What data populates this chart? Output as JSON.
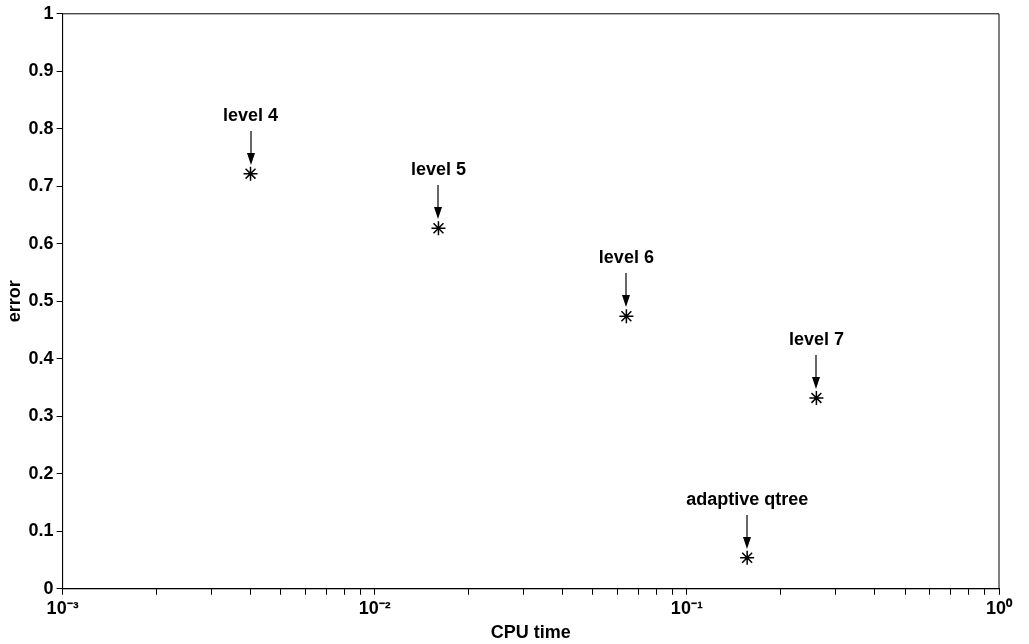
{
  "chart_data": {
    "type": "scatter",
    "xlabel": "CPU time",
    "ylabel": "error",
    "log": "x",
    "grid": false,
    "legend": false,
    "marker": "cross",
    "x": [
      0.004,
      0.016,
      0.064,
      0.26,
      0.156
    ],
    "series": [
      {
        "color": "#000000",
        "values": [
          0.722,
          0.627,
          0.474,
          0.332,
          0.054
        ]
      }
    ],
    "xlim": [
      0.001,
      1
    ],
    "xticks": [
      {
        "value": 0.001,
        "label": "10⁻³"
      },
      {
        "value": 0.002,
        "label": null
      },
      {
        "value": 0.003,
        "label": null
      },
      {
        "value": 0.004,
        "label": null
      },
      {
        "value": 0.005,
        "label": null
      },
      {
        "value": 0.006,
        "label": null
      },
      {
        "value": 0.007,
        "label": null
      },
      {
        "value": 0.008,
        "label": null
      },
      {
        "value": 0.009,
        "label": null
      },
      {
        "value": 0.01,
        "label": "10⁻²"
      },
      {
        "value": 0.02,
        "label": null
      },
      {
        "value": 0.03,
        "label": null
      },
      {
        "value": 0.04,
        "label": null
      },
      {
        "value": 0.05,
        "label": null
      },
      {
        "value": 0.06,
        "label": null
      },
      {
        "value": 0.07,
        "label": null
      },
      {
        "value": 0.08,
        "label": null
      },
      {
        "value": 0.09,
        "label": null
      },
      {
        "value": 0.1,
        "label": "10⁻¹"
      },
      {
        "value": 0.2,
        "label": null
      },
      {
        "value": 0.3,
        "label": null
      },
      {
        "value": 0.4,
        "label": null
      },
      {
        "value": 0.5,
        "label": null
      },
      {
        "value": 0.6,
        "label": null
      },
      {
        "value": 0.7,
        "label": null
      },
      {
        "value": 0.8,
        "label": null
      },
      {
        "value": 0.9,
        "label": null
      },
      {
        "value": 1,
        "label": "10⁰"
      }
    ],
    "ylim": [
      0,
      1
    ],
    "yticks": [
      0,
      0.1,
      0.2,
      0.3,
      0.4,
      0.5,
      0.6,
      0.7,
      0.8,
      0.9,
      1
    ],
    "annotations": [
      {
        "text": "level 4",
        "x": 0.004,
        "y": 0.722
      },
      {
        "text": "level 5",
        "x": 0.016,
        "y": 0.627
      },
      {
        "text": "level 6",
        "x": 0.064,
        "y": 0.474
      },
      {
        "text": "level 7",
        "x": 0.26,
        "y": 0.332
      },
      {
        "text": "adaptive qtree",
        "x": 0.156,
        "y": 0.054
      }
    ]
  }
}
